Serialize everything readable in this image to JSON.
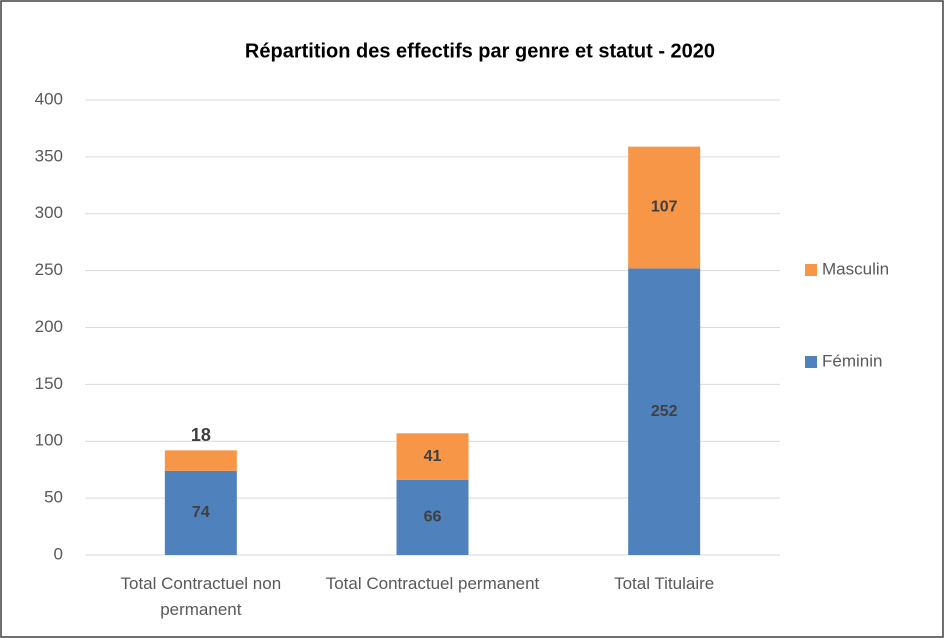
{
  "chart_data": {
    "type": "stacked_bar",
    "title": "Répartition des effectifs par genre et statut - 2020",
    "categories": [
      "Total Contractuel non permanent",
      "Total Contractuel permanent",
      "Total Titulaire"
    ],
    "series": [
      {
        "name": "Féminin",
        "color": "#4f81bd",
        "values": [
          74,
          66,
          252
        ]
      },
      {
        "name": "Masculin",
        "color": "#f79646",
        "values": [
          18,
          41,
          107
        ]
      }
    ],
    "ylim": [
      0,
      400
    ],
    "yticks": [
      0,
      50,
      100,
      150,
      200,
      250,
      300,
      350,
      400
    ],
    "grid": true,
    "legend": "right"
  }
}
